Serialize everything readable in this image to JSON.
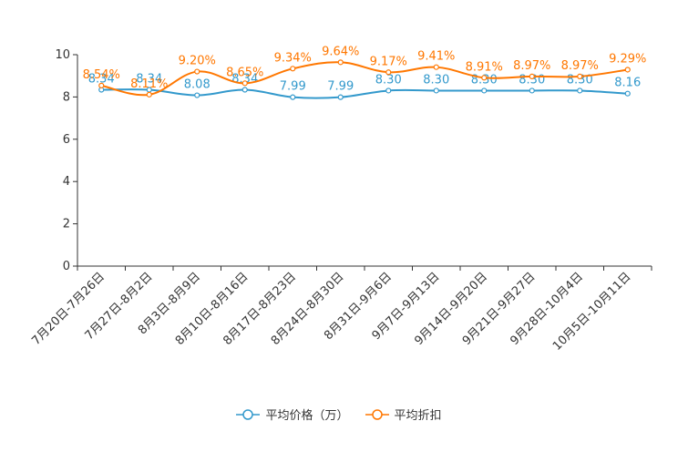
{
  "chart_data": {
    "type": "line",
    "categories": [
      "7月20日-7月26日",
      "7月27日-8月2日",
      "8月3日-8月9日",
      "8月10日-8月16日",
      "8月17日-8月23日",
      "8月24日-8月30日",
      "8月31日-9月6日",
      "9月7日-9月13日",
      "9月14日-9月20日",
      "9月21日-9月27日",
      "9月28日-10月4日",
      "10月5日-10月11日"
    ],
    "ylim": [
      0,
      10
    ],
    "yticks": [
      0,
      2,
      4,
      6,
      8,
      10
    ],
    "series": [
      {
        "name": "平均价格（万）",
        "color": "#3399cc",
        "values": [
          8.34,
          8.34,
          8.08,
          8.34,
          7.99,
          7.99,
          8.3,
          8.3,
          8.3,
          8.3,
          8.3,
          8.16
        ],
        "labels": [
          "8.34",
          "8.34",
          "8.08",
          "8.34",
          "7.99",
          "7.99",
          "8.30",
          "8.30",
          "8.30",
          "8.30",
          "8.30",
          "8.16"
        ]
      },
      {
        "name": "平均折扣",
        "color": "#ff7700",
        "values": [
          8.54,
          8.11,
          9.2,
          8.65,
          9.34,
          9.64,
          9.17,
          9.41,
          8.91,
          8.97,
          8.97,
          9.29
        ],
        "labels": [
          "8.54%",
          "8.11%",
          "9.20%",
          "8.65%",
          "9.34%",
          "9.64%",
          "9.17%",
          "9.41%",
          "8.91%",
          "8.97%",
          "8.97%",
          "9.29%"
        ]
      }
    ]
  },
  "legend": {
    "price_label": "平均价格（万）",
    "discount_label": "平均折扣"
  }
}
